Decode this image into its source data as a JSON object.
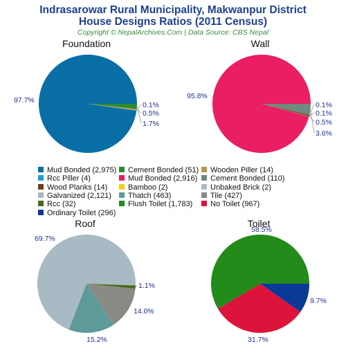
{
  "header": {
    "title_line1": "Indrasarowar Rural Municipality, Makwanpur District",
    "title_line2": "House Designs Ratios (2011 Census)",
    "subtitle": "Copyright © NepalArchives.Com | Data Source: CBS Nepal"
  },
  "legend": [
    {
      "label": "Mud Bonded (2,975)",
      "color": "#0a6ea6"
    },
    {
      "label": "Cement Bonded (51)",
      "color": "#2e8b2e"
    },
    {
      "label": "Wooden Piller (14)",
      "color": "#b8964a"
    },
    {
      "label": "Rcc Piller (4)",
      "color": "#1aa3c7"
    },
    {
      "label": "Mud Bonded (2,916)",
      "color": "#e91e63"
    },
    {
      "label": "Cement Bonded (110)",
      "color": "#6f8a80"
    },
    {
      "label": "Wood Planks (14)",
      "color": "#6b3f12"
    },
    {
      "label": "Bamboo (2)",
      "color": "#f2cf1a"
    },
    {
      "label": "Unbaked Brick (2)",
      "color": "#a8bac4"
    },
    {
      "label": "Galvanized (2,121)",
      "color": "#a8bac4"
    },
    {
      "label": "Thatch (463)",
      "color": "#5e9a9a"
    },
    {
      "label": "Tile (427)",
      "color": "#8a8a84"
    },
    {
      "label": "Rcc (32)",
      "color": "#4a6b1a"
    },
    {
      "label": "Flush Toilet (1,783)",
      "color": "#228b1a"
    },
    {
      "label": "No Toilet (967)",
      "color": "#dc143c"
    },
    {
      "label": "Ordinary Toilet (296)",
      "color": "#0a3a96"
    }
  ],
  "chart_data": [
    {
      "type": "pie",
      "title": "Foundation",
      "slices": [
        {
          "label": "Mud Bonded",
          "value": 2975,
          "percent": "97.7%",
          "color": "#0a6ea6"
        },
        {
          "label": "Rcc Piller",
          "value": 4,
          "percent": "0.1%",
          "color": "#1aa3c7"
        },
        {
          "label": "Wooden Piller",
          "value": 14,
          "percent": "0.5%",
          "color": "#b8964a"
        },
        {
          "label": "Cement Bonded",
          "value": 51,
          "percent": "1.7%",
          "color": "#2e8b2e"
        }
      ]
    },
    {
      "type": "pie",
      "title": "Wall",
      "slices": [
        {
          "label": "Mud Bonded",
          "value": 2916,
          "percent": "95.8%",
          "color": "#e91e63"
        },
        {
          "label": "Bamboo",
          "value": 2,
          "percent": "0.1%",
          "color": "#f2cf1a"
        },
        {
          "label": "Unbaked Brick",
          "value": 2,
          "percent": "0.1%",
          "color": "#a8bac4"
        },
        {
          "label": "Wood Planks",
          "value": 14,
          "percent": "0.5%",
          "color": "#6b3f12"
        },
        {
          "label": "Cement Bonded",
          "value": 110,
          "percent": "3.6%",
          "color": "#6f8a80"
        }
      ]
    },
    {
      "type": "pie",
      "title": "Roof",
      "slices": [
        {
          "label": "Galvanized",
          "value": 2121,
          "percent": "69.7%",
          "color": "#a8bac4"
        },
        {
          "label": "Thatch",
          "value": 463,
          "percent": "15.2%",
          "color": "#5e9a9a"
        },
        {
          "label": "Tile",
          "value": 427,
          "percent": "14.0%",
          "color": "#8a8a84"
        },
        {
          "label": "Rcc",
          "value": 32,
          "percent": "1.1%",
          "color": "#4a6b1a"
        }
      ]
    },
    {
      "type": "pie",
      "title": "Toilet",
      "slices": [
        {
          "label": "Flush Toilet",
          "value": 1783,
          "percent": "58.5%",
          "color": "#228b1a"
        },
        {
          "label": "No Toilet",
          "value": 967,
          "percent": "31.7%",
          "color": "#dc143c"
        },
        {
          "label": "Ordinary Toilet",
          "value": 296,
          "percent": "9.7%",
          "color": "#0a3a96"
        }
      ]
    }
  ]
}
